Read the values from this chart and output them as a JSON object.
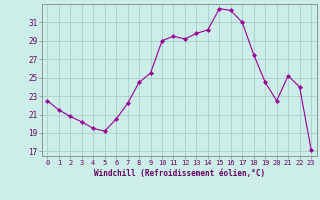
{
  "hours": [
    0,
    1,
    2,
    3,
    4,
    5,
    6,
    7,
    8,
    9,
    10,
    11,
    12,
    13,
    14,
    15,
    16,
    17,
    18,
    19,
    20,
    21,
    22,
    23
  ],
  "values": [
    22.5,
    21.5,
    20.8,
    20.2,
    19.5,
    19.2,
    20.5,
    22.2,
    24.5,
    25.5,
    29.0,
    29.5,
    29.2,
    29.8,
    30.2,
    32.5,
    32.3,
    31.0,
    27.5,
    24.5,
    22.5,
    25.2,
    24.0,
    17.2
  ],
  "line_color": "#990099",
  "marker": "D",
  "marker_size": 2,
  "bg_color": "#cceee8",
  "grid_color": "#aacccc",
  "ylabel_values": [
    17,
    19,
    21,
    23,
    25,
    27,
    29,
    31
  ],
  "xlabel": "Windchill (Refroidissement éolien,°C)",
  "tick_color": "#660066",
  "ylim": [
    16.5,
    33.0
  ],
  "xlim": [
    -0.5,
    23.5
  ]
}
